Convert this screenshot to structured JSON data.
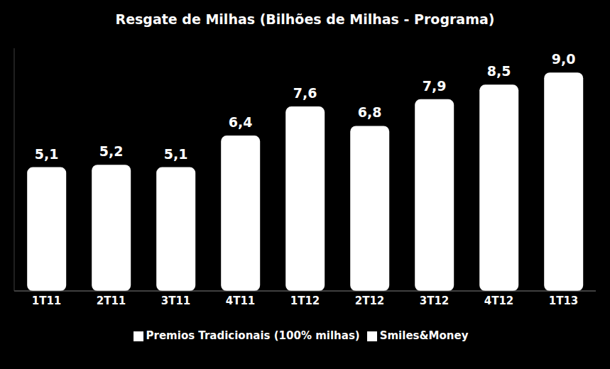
{
  "chart_data": {
    "type": "bar",
    "title": "Resgate de Milhas (Bilhões de Milhas - Programa)",
    "categories": [
      "1T11",
      "2T11",
      "3T11",
      "4T11",
      "1T12",
      "2T12",
      "3T12",
      "4T12",
      "1T13"
    ],
    "series": [
      {
        "name": "Premios Tradicionais (100% milhas)",
        "color": "#ffffff",
        "values": [
          5.1,
          5.2,
          5.1,
          6.4,
          7.6,
          6.8,
          7.9,
          8.5,
          9.0
        ],
        "value_labels": [
          "5,1",
          "5,2",
          "5,1",
          "6,4",
          "7,6",
          "6,8",
          "7,9",
          "8,5",
          "9,0"
        ]
      },
      {
        "name": "Smiles&Money",
        "color": "#ffffff",
        "values": [
          0,
          0,
          0,
          0,
          0,
          0,
          0,
          0,
          0
        ]
      }
    ],
    "ylim": [
      0,
      10
    ],
    "stacked": true,
    "data_labels": true,
    "legend": "bottom",
    "tick_labels": "x",
    "grid": false
  }
}
